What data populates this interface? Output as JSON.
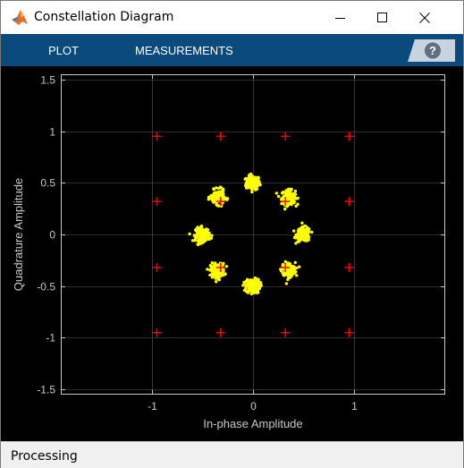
{
  "window": {
    "title": "Constellation Diagram"
  },
  "toolstrip": {
    "tabs": [
      "PLOT",
      "MEASUREMENTS"
    ],
    "help_label": "?"
  },
  "status": {
    "text": "Processing"
  },
  "colors": {
    "toolstrip": "#0b4a7c",
    "plot_background": "#000000",
    "grid": "#5a5a5a",
    "axes_text": "#c8c8c8",
    "received_points": "#ffff00",
    "reference_markers": "#ff0000"
  },
  "chart_data": {
    "type": "scatter",
    "xlabel": "In-phase Amplitude",
    "ylabel": "Quadrature Amplitude",
    "xlim": [
      -1.9,
      1.9
    ],
    "ylim": [
      -1.55,
      1.55
    ],
    "xticks": [
      -1,
      0,
      1
    ],
    "xtick_labels": [
      "-1",
      "0",
      "1"
    ],
    "yticks": [
      1.5,
      1,
      0.5,
      0,
      -0.5,
      -1,
      -1.5
    ],
    "ytick_labels": [
      "1.5",
      "1",
      "0.5",
      "0",
      "-0.5",
      "-1",
      "-1.5"
    ],
    "grid": true,
    "reference_constellation": {
      "marker": "plus",
      "points": [
        [
          -0.95,
          0.95
        ],
        [
          -0.32,
          0.95
        ],
        [
          0.32,
          0.95
        ],
        [
          0.95,
          0.95
        ],
        [
          -0.95,
          0.32
        ],
        [
          -0.32,
          0.32
        ],
        [
          0.32,
          0.32
        ],
        [
          0.95,
          0.32
        ],
        [
          -0.95,
          -0.32
        ],
        [
          -0.32,
          -0.32
        ],
        [
          0.32,
          -0.32
        ],
        [
          0.95,
          -0.32
        ],
        [
          -0.95,
          -0.95
        ],
        [
          -0.32,
          -0.95
        ],
        [
          0.32,
          -0.95
        ],
        [
          0.95,
          -0.95
        ]
      ]
    },
    "received_clusters": {
      "marker": "dot",
      "centers": [
        [
          0.0,
          0.5
        ],
        [
          0.35,
          0.36
        ],
        [
          0.5,
          0.0
        ],
        [
          0.35,
          -0.34
        ],
        [
          0.0,
          -0.5
        ],
        [
          -0.35,
          -0.35
        ],
        [
          -0.5,
          0.0
        ],
        [
          -0.35,
          0.36
        ]
      ],
      "spread": 0.045
    }
  }
}
